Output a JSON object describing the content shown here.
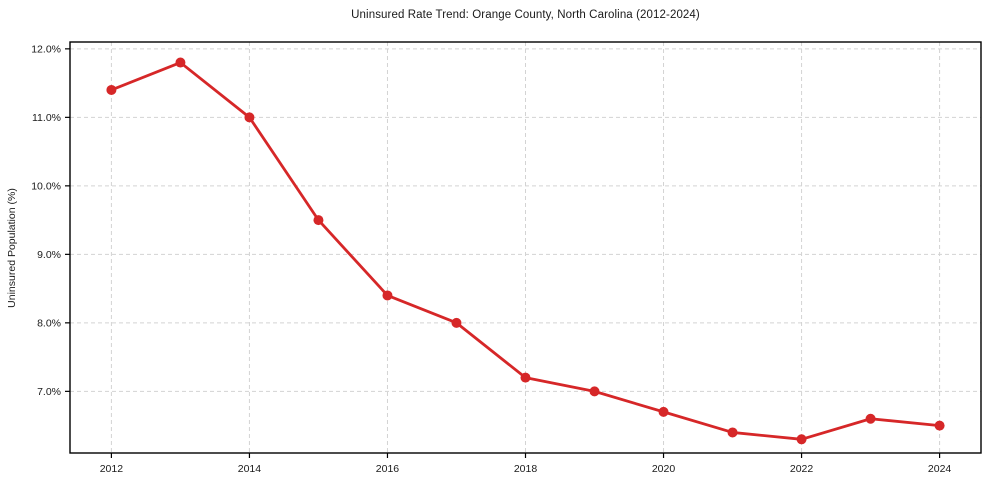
{
  "chart_data": {
    "type": "line",
    "title": "Uninsured Rate Trend: Orange County, North Carolina (2012-2024)",
    "xlabel": "",
    "ylabel": "Uninsured Population (%)",
    "x": [
      2012,
      2013,
      2014,
      2015,
      2016,
      2017,
      2018,
      2019,
      2020,
      2021,
      2022,
      2023,
      2024
    ],
    "series": [
      {
        "name": "Uninsured rate",
        "values": [
          11.4,
          11.8,
          11.0,
          9.5,
          8.4,
          8.0,
          7.2,
          7.0,
          6.7,
          6.4,
          6.3,
          6.6,
          6.5
        ]
      }
    ],
    "xlim": [
      2011.4,
      2024.6
    ],
    "ylim": [
      6.1,
      12.1
    ],
    "xticks": [
      2012,
      2014,
      2016,
      2018,
      2020,
      2022,
      2024
    ],
    "xtick_labels": [
      "2012",
      "2014",
      "2016",
      "2018",
      "2020",
      "2022",
      "2024"
    ],
    "yticks": [
      7,
      8,
      9,
      10,
      11,
      12
    ],
    "ytick_labels": [
      "7.0%",
      "8.0%",
      "9.0%",
      "10.0%",
      "11.0%",
      "12.0%"
    ],
    "grid": true,
    "legend": "none",
    "colors": {
      "line": "#d62728",
      "marker": "#d62728",
      "grid": "#d3d3d3",
      "spine": "#000000",
      "background": "#ffffff"
    }
  }
}
